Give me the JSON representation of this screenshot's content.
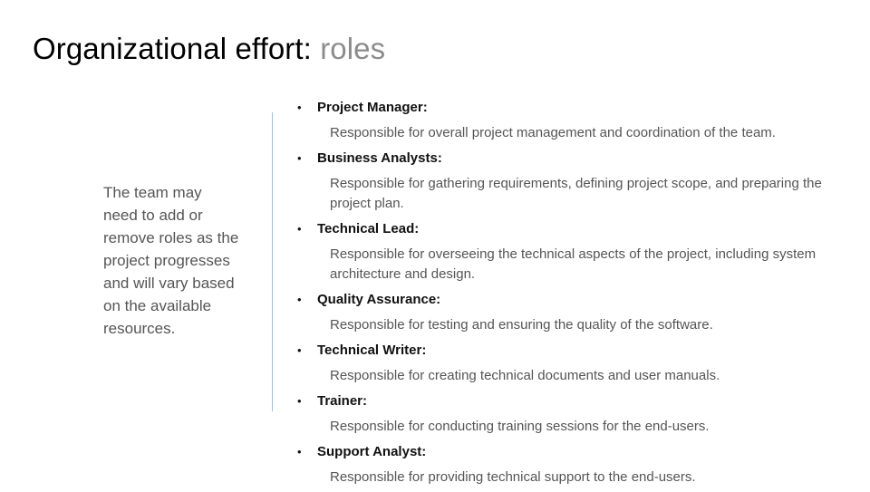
{
  "slide": {
    "title_main": "Organizational effort: ",
    "title_accent": "roles",
    "side_note": "The team may need to add or remove roles as the project progresses and will vary based on the available resources.",
    "bullet_glyph": "•",
    "roles": [
      {
        "name": "Project Manager:",
        "description": "Responsible for overall project management and coordination of the team."
      },
      {
        "name": "Business Analysts:",
        "description": "Responsible for gathering requirements, defining project scope, and preparing the project plan."
      },
      {
        "name": "Technical Lead:",
        "description": "Responsible for overseeing the technical aspects of the project, including system architecture and design."
      },
      {
        "name": "Quality Assurance:",
        "description": "Responsible for testing and ensuring the quality of the software."
      },
      {
        "name": "Technical Writer:",
        "description": "Responsible for creating technical documents and user manuals."
      },
      {
        "name": "Trainer:",
        "description": "Responsible for conducting training sessions for the end-users."
      },
      {
        "name": "Support Analyst:",
        "description": "Responsible for providing technical support to the end-users."
      }
    ],
    "colors": {
      "accent_title": "#8c8c8c",
      "divider": "#a9bfd6",
      "body_text": "#555555"
    }
  }
}
